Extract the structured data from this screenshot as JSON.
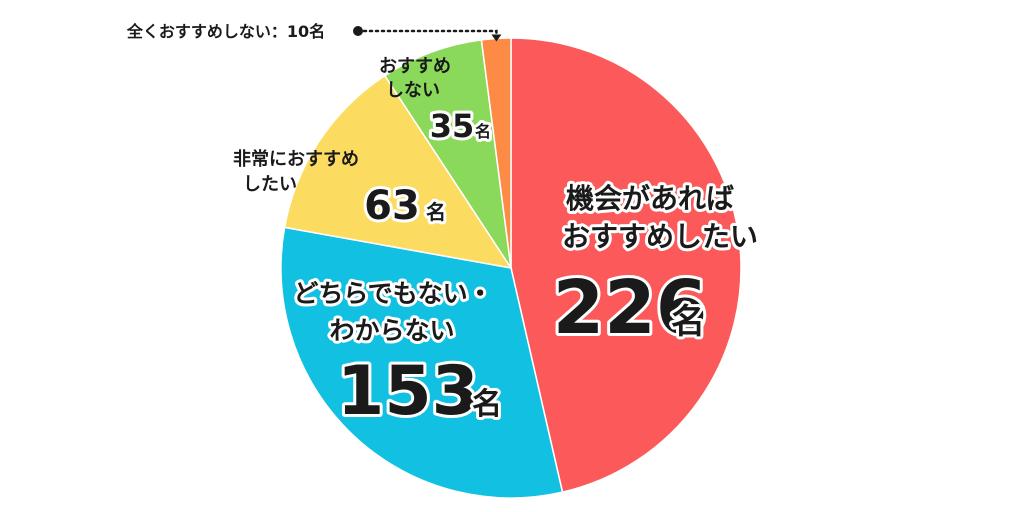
{
  "chart_data": {
    "type": "pie",
    "title": "",
    "unit": "名",
    "start": "top",
    "direction": "clockwise",
    "slices": [
      {
        "label_lines": [
          "機会があれば",
          "おすすめしたい"
        ],
        "value": 226,
        "value_text": "226",
        "unit": "名",
        "color": "#fc5a5a"
      },
      {
        "label_lines": [
          "どちらでもない・",
          "わからない"
        ],
        "value": 153,
        "value_text": "153",
        "unit": "名",
        "color": "#12c1e2"
      },
      {
        "label_lines": [
          "非常におすすめ",
          "したい"
        ],
        "value": 63,
        "value_text": "63",
        "unit": "名",
        "color": "#fcdc60"
      },
      {
        "label_lines": [
          "おすすめ",
          "しない"
        ],
        "value": 35,
        "value_text": "35",
        "unit": "名",
        "color": "#8bd95a"
      },
      {
        "label_lines": [
          "全くおすすめしない：10名"
        ],
        "value": 10,
        "value_text": "",
        "unit": "",
        "color": "#fd8a45"
      }
    ]
  }
}
